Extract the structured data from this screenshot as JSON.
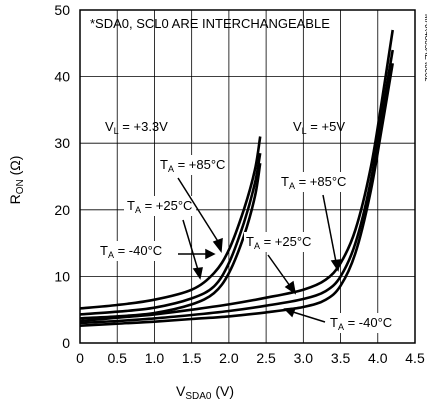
{
  "chart_data": {
    "type": "line",
    "note": "*SDA0, SCL0 ARE INTERCHANGEABLE",
    "figure_id": "MAX4885AE toc02",
    "xlabel": {
      "main": "V",
      "sub": "SDA0",
      "unit": " (V)"
    },
    "ylabel": {
      "main": "R",
      "sub": "ON",
      "unit": " (Ω)"
    },
    "xlim": [
      0,
      4.5
    ],
    "ylim": [
      0,
      50
    ],
    "x_ticks": [
      "0",
      "0.5",
      "1.0",
      "1.5",
      "2.0",
      "2.5",
      "3.0",
      "3.5",
      "4.0",
      "4.5"
    ],
    "y_ticks": [
      "0",
      "10",
      "20",
      "30",
      "40",
      "50"
    ],
    "grid": true,
    "groups": [
      {
        "label": {
          "main": "V",
          "sub": "L",
          "rest": " = +3.3V"
        }
      },
      {
        "label": {
          "main": "V",
          "sub": "L",
          "rest": " = +5V"
        }
      }
    ],
    "series": [
      {
        "group": 0,
        "name": {
          "main": "T",
          "sub": "A",
          "rest": " = +85°C"
        },
        "x": [
          0,
          0.5,
          1.0,
          1.5,
          1.8,
          2.0,
          2.2,
          2.35,
          2.42
        ],
        "y": [
          5.2,
          5.7,
          6.5,
          8.0,
          10.5,
          14.0,
          20.0,
          26.0,
          31.0
        ]
      },
      {
        "group": 0,
        "name": {
          "main": "T",
          "sub": "A",
          "rest": " = +25°C"
        },
        "x": [
          0,
          0.5,
          1.0,
          1.5,
          1.8,
          2.0,
          2.2,
          2.35,
          2.42
        ],
        "y": [
          4.3,
          4.7,
          5.3,
          6.7,
          8.5,
          12.0,
          18.0,
          24.0,
          28.5
        ]
      },
      {
        "group": 0,
        "name": {
          "main": "T",
          "sub": "A",
          "rest": " = -40°C"
        },
        "x": [
          0,
          0.5,
          1.0,
          1.5,
          1.8,
          2.0,
          2.2,
          2.35,
          2.42
        ],
        "y": [
          3.7,
          4.0,
          4.5,
          5.8,
          7.5,
          10.5,
          16.0,
          22.0,
          27.0
        ]
      },
      {
        "group": 1,
        "name": {
          "main": "T",
          "sub": "A",
          "rest": " = +85°C"
        },
        "x": [
          0,
          0.5,
          1.0,
          1.5,
          2.0,
          2.5,
          3.0,
          3.3,
          3.5,
          3.7,
          3.9,
          4.05,
          4.2
        ],
        "y": [
          3.3,
          3.8,
          4.3,
          5.0,
          5.8,
          6.8,
          8.0,
          9.5,
          12.0,
          17.0,
          26.0,
          36.0,
          47.0
        ]
      },
      {
        "group": 1,
        "name": {
          "main": "T",
          "sub": "A",
          "rest": " = +25°C"
        },
        "x": [
          0,
          0.5,
          1.0,
          1.5,
          2.0,
          2.5,
          3.0,
          3.3,
          3.5,
          3.7,
          3.9,
          4.05,
          4.2
        ],
        "y": [
          3.0,
          3.3,
          3.7,
          4.2,
          4.8,
          5.6,
          6.6,
          7.8,
          10.0,
          15.0,
          24.0,
          34.0,
          44.0
        ]
      },
      {
        "group": 1,
        "name": {
          "main": "T",
          "sub": "A",
          "rest": " = -40°C"
        },
        "x": [
          0,
          0.5,
          1.0,
          1.5,
          2.0,
          2.5,
          3.0,
          3.3,
          3.5,
          3.7,
          3.9,
          4.05,
          4.2
        ],
        "y": [
          2.6,
          2.9,
          3.2,
          3.6,
          4.0,
          4.6,
          5.4,
          6.5,
          8.6,
          13.5,
          22.5,
          32.0,
          42.0
        ]
      }
    ]
  }
}
